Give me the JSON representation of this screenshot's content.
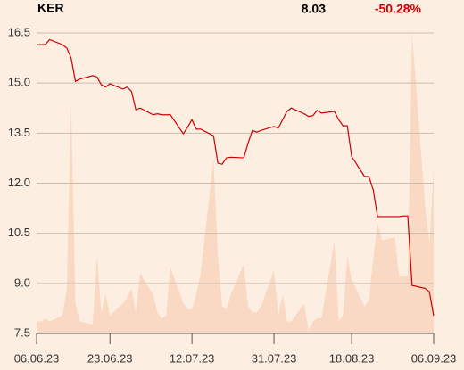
{
  "chart_data": {
    "type": "line",
    "title": "KER",
    "annotations": [
      "8.03",
      "-50.28%"
    ],
    "x": [
      "2023-06-06",
      "2023-06-07",
      "2023-06-08",
      "2023-06-09",
      "2023-06-12",
      "2023-06-13",
      "2023-06-14",
      "2023-06-15",
      "2023-06-16",
      "2023-06-19",
      "2023-06-20",
      "2023-06-21",
      "2023-06-22",
      "2023-06-23",
      "2023-06-26",
      "2023-06-27",
      "2023-06-28",
      "2023-06-29",
      "2023-06-30",
      "2023-07-03",
      "2023-07-04",
      "2023-07-05",
      "2023-07-06",
      "2023-07-07",
      "2023-07-10",
      "2023-07-11",
      "2023-07-12",
      "2023-07-13",
      "2023-07-14",
      "2023-07-17",
      "2023-07-18",
      "2023-07-19",
      "2023-07-20",
      "2023-07-21",
      "2023-07-24",
      "2023-07-25",
      "2023-07-26",
      "2023-07-27",
      "2023-07-28",
      "2023-07-31",
      "2023-08-01",
      "2023-08-02",
      "2023-08-03",
      "2023-08-04",
      "2023-08-07",
      "2023-08-08",
      "2023-08-09",
      "2023-08-10",
      "2023-08-11",
      "2023-08-14",
      "2023-08-15",
      "2023-08-16",
      "2023-08-17",
      "2023-08-18",
      "2023-08-21",
      "2023-08-22",
      "2023-08-23",
      "2023-08-24",
      "2023-08-25",
      "2023-08-28",
      "2023-08-29",
      "2023-08-30",
      "2023-08-31",
      "2023-09-01",
      "2023-09-04",
      "2023-09-05",
      "2023-09-06"
    ],
    "series": [
      {
        "type": "line",
        "color": "#cc0000",
        "values": [
          16.15,
          16.15,
          16.15,
          16.3,
          16.15,
          16.05,
          15.75,
          15.05,
          15.12,
          15.22,
          15.18,
          14.95,
          14.88,
          14.98,
          14.82,
          14.88,
          14.75,
          14.2,
          14.25,
          14.05,
          14.08,
          14.05,
          14.05,
          14.05,
          13.48,
          13.68,
          13.9,
          13.62,
          13.62,
          13.42,
          12.6,
          12.57,
          12.76,
          12.78,
          12.76,
          13.2,
          13.58,
          13.53,
          13.58,
          13.7,
          13.65,
          13.9,
          14.15,
          14.25,
          14.08,
          14.0,
          14.02,
          14.18,
          14.1,
          14.15,
          13.9,
          13.72,
          13.72,
          12.8,
          12.2,
          12.2,
          11.8,
          11.0,
          11.0,
          11.0,
          11.0,
          11.02,
          11.02,
          8.94,
          8.85,
          8.75,
          8.03
        ]
      },
      {
        "type": "area",
        "axis": "y2",
        "color": "#f9d9c4",
        "values": [
          4,
          4,
          5,
          4,
          6,
          15,
          77,
          10,
          4,
          3,
          26,
          7,
          13,
          6,
          10,
          12,
          15,
          7,
          20,
          13,
          7,
          5,
          6,
          22,
          10,
          8,
          8,
          13,
          20,
          58,
          26,
          9,
          8,
          13,
          23,
          9,
          7,
          7,
          9,
          21,
          6,
          13,
          4,
          4,
          10,
          1,
          4,
          5,
          5,
          31,
          4,
          6,
          26,
          18,
          9,
          11,
          25,
          37,
          31,
          32,
          19,
          19,
          19,
          100,
          43,
          30,
          55
        ]
      }
    ],
    "xlim": [
      "2023-06-06",
      "2023-09-06"
    ],
    "xticks": [
      {
        "value": "2023-06-06",
        "label": "06.06.23"
      },
      {
        "value": "2023-06-23",
        "label": "23.06.23"
      },
      {
        "value": "2023-07-12",
        "label": "12.07.23"
      },
      {
        "value": "2023-07-31",
        "label": "31.07.23"
      },
      {
        "value": "2023-08-18",
        "label": "18.08.23"
      },
      {
        "value": "2023-09-06",
        "label": "06.09.23"
      }
    ],
    "ylim": [
      7.5,
      16.5
    ],
    "yticks": [
      {
        "value": 7.5,
        "label": "7.5"
      },
      {
        "value": 9,
        "label": "9.0"
      },
      {
        "value": 10.5,
        "label": "10.5"
      },
      {
        "value": 12,
        "label": "12.0"
      },
      {
        "value": 13.5,
        "label": "13.5"
      },
      {
        "value": 15,
        "label": "15.0"
      },
      {
        "value": 16.5,
        "label": "16.5"
      }
    ],
    "y2lim": [
      0,
      100
    ],
    "grid": true
  }
}
